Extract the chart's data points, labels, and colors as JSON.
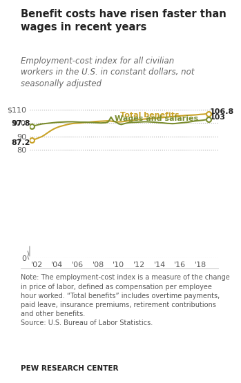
{
  "title": "Benefit costs have risen faster than\nwages in recent years",
  "subtitle": "Employment-cost index for all civilian\nworkers in the U.S. in constant dollars, not\nseasonally adjusted",
  "note": "Note: The employment-cost index is a measure of the change\nin price of labor, defined as compensation per employee\nhour worked. “Total benefits” includes overtime payments,\npaid leave, insurance premiums, retirement contributions\nand other benefits.\nSource: U.S. Bureau of Labor Statistics.",
  "source_label": "PEW RESEARCH CENTER",
  "benefits_color": "#C9A227",
  "wages_color": "#7A8C2E",
  "ylim": [
    0,
    115
  ],
  "yticks": [
    0,
    80,
    90,
    100,
    110
  ],
  "ytick_labels": [
    "0",
    "80",
    "90",
    "100",
    "$110"
  ],
  "xtick_years": [
    "'02",
    "'04",
    "'06",
    "'08",
    "'10",
    "'12",
    "'14",
    "'16",
    "'18"
  ],
  "xtick_positions": [
    2001.5,
    2003.5,
    2005.5,
    2007.5,
    2009.5,
    2011.5,
    2013.5,
    2015.5,
    2017.5
  ],
  "start_label_benefits": "87.2",
  "start_label_wages": "97.8",
  "end_label_benefits": "106.8",
  "end_label_wages": "103",
  "benefits_label": "Total benefits",
  "wages_label": "Wages and salaries",
  "benefits_x": [
    2001,
    2001.25,
    2001.5,
    2001.75,
    2002,
    2002.25,
    2002.5,
    2002.75,
    2003,
    2003.25,
    2003.5,
    2003.75,
    2004,
    2004.25,
    2004.5,
    2004.75,
    2005,
    2005.25,
    2005.5,
    2005.75,
    2006,
    2006.25,
    2006.5,
    2006.75,
    2007,
    2007.25,
    2007.5,
    2007.75,
    2008,
    2008.25,
    2008.5,
    2008.75,
    2009,
    2009.25,
    2009.5,
    2009.75,
    2010,
    2010.25,
    2010.5,
    2010.75,
    2011,
    2011.25,
    2011.5,
    2011.75,
    2012,
    2012.25,
    2012.5,
    2012.75,
    2013,
    2013.25,
    2013.5,
    2013.75,
    2014,
    2014.25,
    2014.5,
    2014.75,
    2015,
    2015.25,
    2015.5,
    2015.75,
    2016,
    2016.25,
    2016.5,
    2016.75,
    2017,
    2017.25,
    2017.5,
    2017.75,
    2018,
    2018.25
  ],
  "benefits_y": [
    87.2,
    87.8,
    88.5,
    89.3,
    90.0,
    91.2,
    92.5,
    93.8,
    95.0,
    96.0,
    96.8,
    97.5,
    98.0,
    98.5,
    99.0,
    99.4,
    99.7,
    99.9,
    100.0,
    100.1,
    100.3,
    100.5,
    100.6,
    100.8,
    101.0,
    101.2,
    101.3,
    101.4,
    101.5,
    101.6,
    101.7,
    101.5,
    101.2,
    101.0,
    100.9,
    101.0,
    101.2,
    101.5,
    101.8,
    102.0,
    102.2,
    102.4,
    102.6,
    102.8,
    103.0,
    103.2,
    103.4,
    103.5,
    103.6,
    103.7,
    103.9,
    104.1,
    104.3,
    104.5,
    104.7,
    104.9,
    105.0,
    105.2,
    105.4,
    105.5,
    105.7,
    105.8,
    105.9,
    106.0,
    106.1,
    106.3,
    106.5,
    106.6,
    106.8,
    106.8
  ],
  "wages_x": [
    2001,
    2001.25,
    2001.5,
    2001.75,
    2002,
    2002.25,
    2002.5,
    2002.75,
    2003,
    2003.25,
    2003.5,
    2003.75,
    2004,
    2004.25,
    2004.5,
    2004.75,
    2005,
    2005.25,
    2005.5,
    2005.75,
    2006,
    2006.25,
    2006.5,
    2006.75,
    2007,
    2007.25,
    2007.5,
    2007.75,
    2008,
    2008.25,
    2008.5,
    2008.75,
    2009,
    2009.25,
    2009.5,
    2009.75,
    2010,
    2010.25,
    2010.5,
    2010.75,
    2011,
    2011.25,
    2011.5,
    2011.75,
    2012,
    2012.25,
    2012.5,
    2012.75,
    2013,
    2013.25,
    2013.5,
    2013.75,
    2014,
    2014.25,
    2014.5,
    2014.75,
    2015,
    2015.25,
    2015.5,
    2015.75,
    2016,
    2016.25,
    2016.5,
    2016.75,
    2017,
    2017.25,
    2017.5,
    2017.75,
    2018,
    2018.25
  ],
  "wages_y": [
    97.8,
    98.0,
    98.5,
    99.0,
    99.4,
    99.6,
    99.8,
    100.0,
    100.2,
    100.4,
    100.6,
    100.7,
    100.8,
    100.9,
    101.0,
    101.0,
    101.0,
    100.9,
    100.8,
    100.7,
    100.7,
    100.7,
    100.6,
    100.5,
    100.4,
    100.3,
    100.2,
    100.1,
    100.2,
    100.3,
    101.0,
    104.5,
    101.5,
    100.8,
    99.5,
    99.0,
    99.5,
    100.0,
    100.3,
    100.5,
    100.6,
    100.7,
    100.8,
    100.9,
    101.0,
    101.0,
    100.9,
    100.8,
    100.7,
    100.5,
    100.3,
    100.2,
    100.0,
    99.8,
    99.7,
    99.6,
    99.7,
    99.9,
    100.1,
    100.3,
    100.5,
    100.7,
    101.0,
    101.3,
    101.6,
    101.8,
    102.0,
    102.2,
    102.5,
    103.0
  ]
}
